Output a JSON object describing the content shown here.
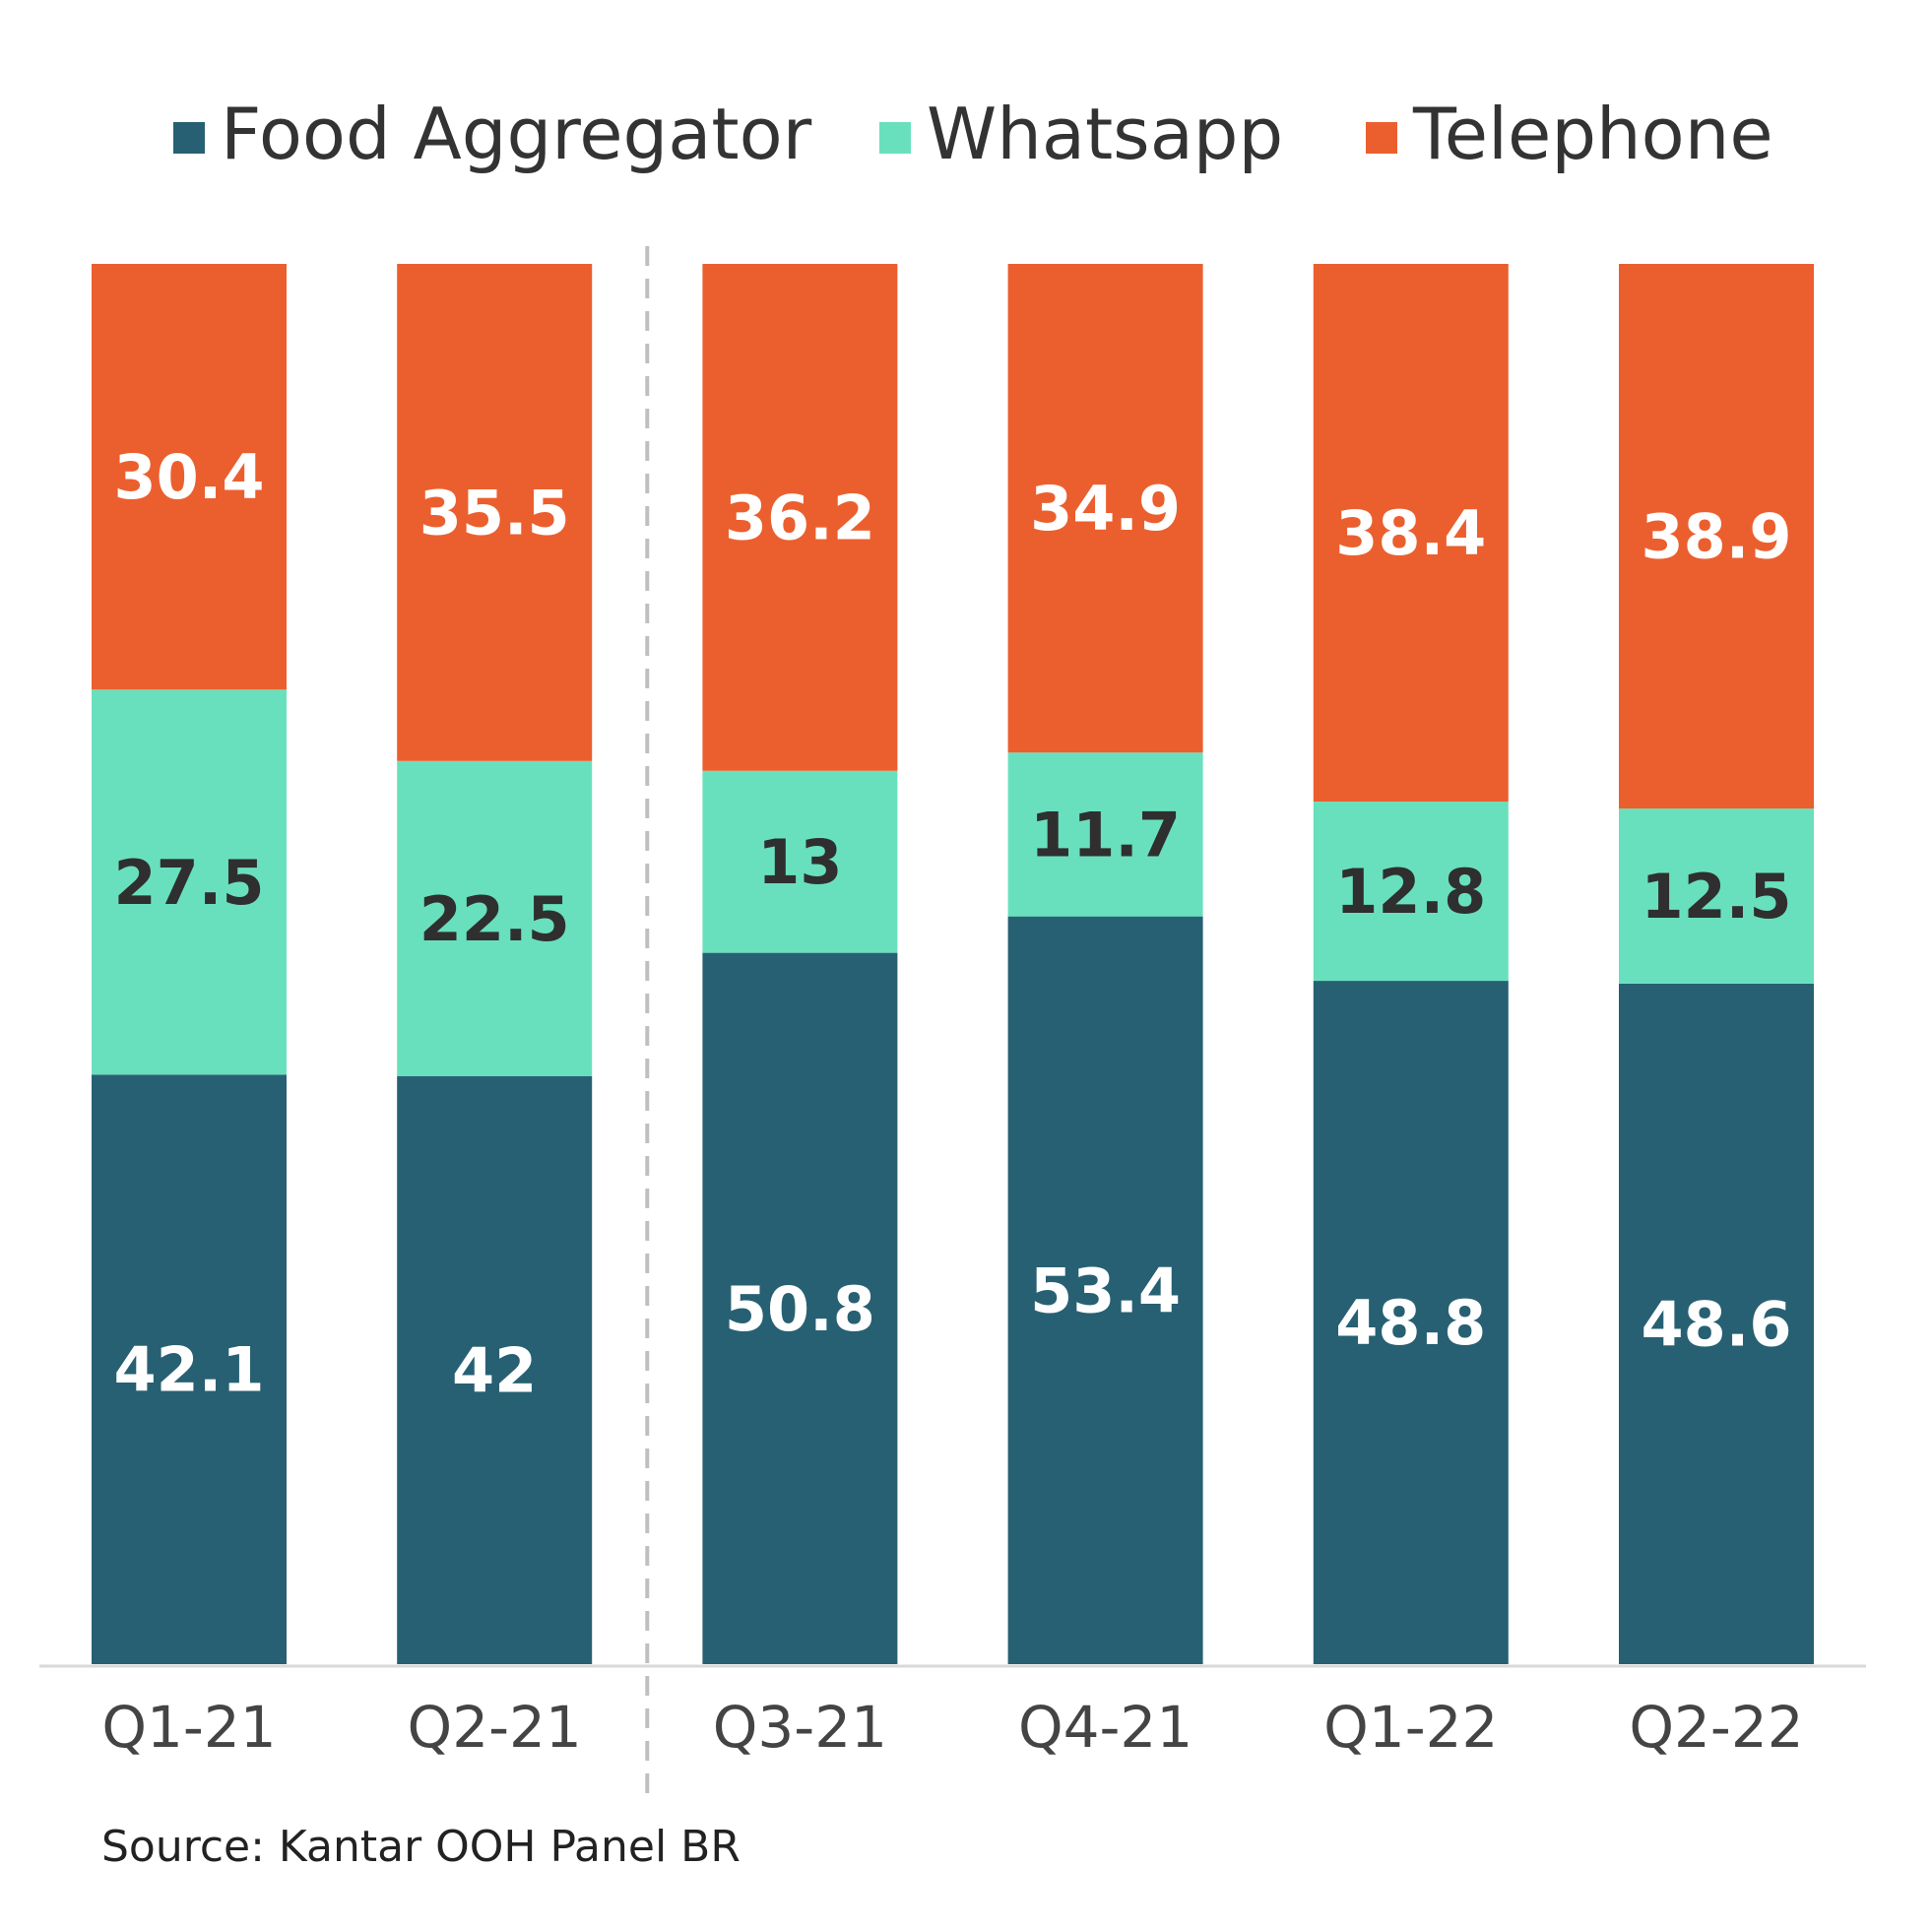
{
  "chart_data": {
    "type": "bar",
    "stacked": true,
    "categories": [
      "Q1-21",
      "Q2-21",
      "Q3-21",
      "Q4-21",
      "Q1-22",
      "Q2-22"
    ],
    "series": [
      {
        "name": "Food Aggregator",
        "color": "#276073",
        "label_color": "#ffffff",
        "values": [
          42.1,
          42,
          50.8,
          53.4,
          48.8,
          48.6
        ]
      },
      {
        "name": "Whatsapp",
        "color": "#69e0bd",
        "label_color": "#2f2f2f",
        "values": [
          27.5,
          22.5,
          13,
          11.7,
          12.8,
          12.5
        ]
      },
      {
        "name": "Telephone",
        "color": "#eb5f2e",
        "label_color": "#ffffff",
        "values": [
          30.4,
          35.5,
          36.2,
          34.9,
          38.4,
          38.9
        ]
      }
    ],
    "data_labels": [
      [
        "42.1",
        "42",
        "50.8",
        "53.4",
        "48.8",
        "48.6"
      ],
      [
        "27.5",
        "22.5",
        "13",
        "11.7",
        "12.8",
        "12.5"
      ],
      [
        "30.4",
        "35.5",
        "36.2",
        "34.9",
        "38.4",
        "38.9"
      ]
    ],
    "legend_position": "top",
    "divider_after_category": "Q2-21",
    "grid": false,
    "title": "",
    "xlabel": "",
    "ylabel": ""
  },
  "source": "Source: Kantar OOH Panel BR"
}
